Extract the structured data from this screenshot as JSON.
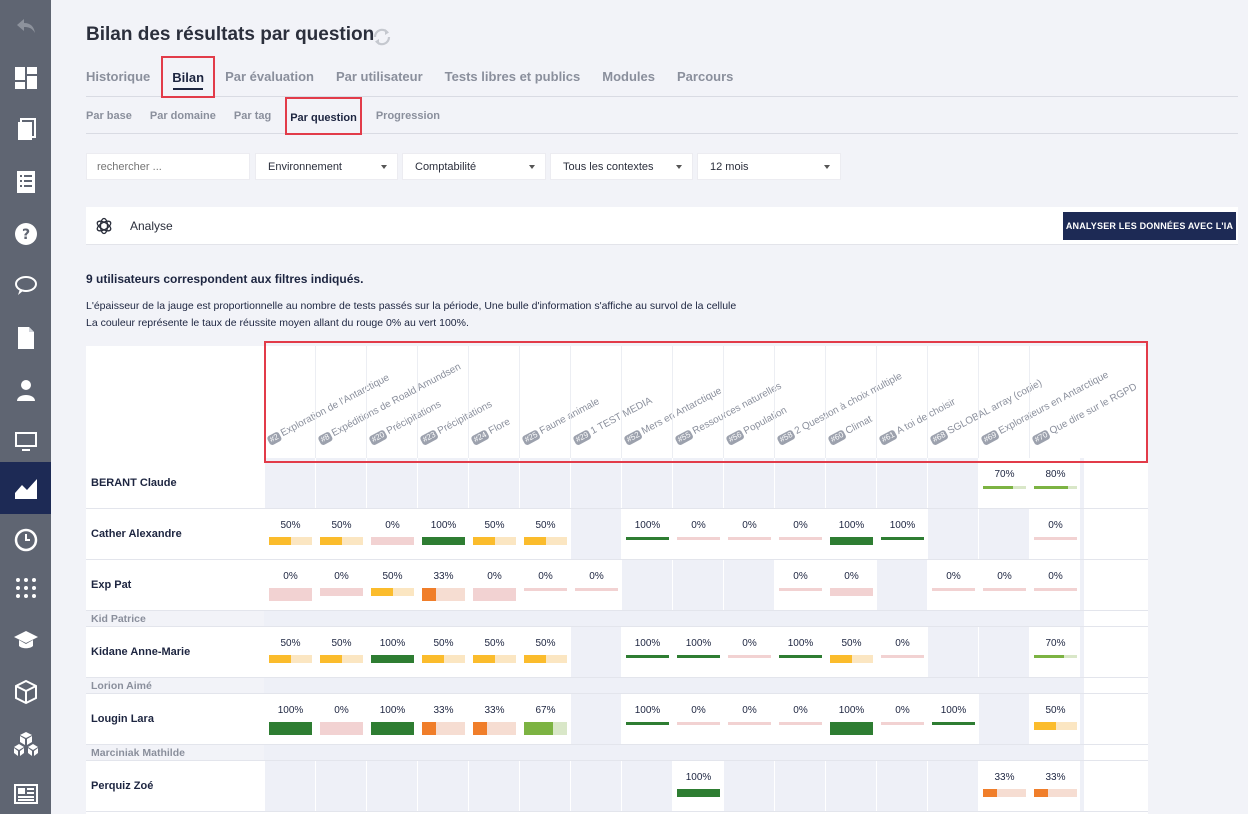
{
  "title": "Bilan des résultats par question",
  "tabs": [
    "Historique",
    "Bilan",
    "Par évaluation",
    "Par utilisateur",
    "Tests libres et publics",
    "Modules",
    "Parcours"
  ],
  "active_tab": 1,
  "subtabs": [
    "Par base",
    "Par domaine",
    "Par tag",
    "Par question",
    "Progression"
  ],
  "active_subtab": 3,
  "search": {
    "placeholder": "rechercher ..."
  },
  "filters": [
    "Environnement",
    "Comptabilité",
    "Tous les contextes",
    "12 mois"
  ],
  "analyse": {
    "label": "Analyse",
    "button": "ANALYSER LES DONNÉES AVEC L'IA"
  },
  "users_count": "9 utilisateurs correspondent aux filtres indiqués.",
  "description": [
    "L'épaisseur de la jauge est proportionnelle au nombre de tests passés sur la période, Une bulle d'information s'affiche au survol de la cellule",
    "La couleur représente le taux de réussite moyen allant du rouge 0% au vert 100%."
  ],
  "questions": [
    {
      "num": "#2",
      "label": "Exploration de l'Antarctique"
    },
    {
      "num": "#8",
      "label": "Expéditions de Roald Amundsen"
    },
    {
      "num": "#20",
      "label": "Précipitations"
    },
    {
      "num": "#23",
      "label": "Précipitations"
    },
    {
      "num": "#24",
      "label": "Flore"
    },
    {
      "num": "#25",
      "label": "Faune animale"
    },
    {
      "num": "#29",
      "label": "1 TEST MEDIA"
    },
    {
      "num": "#52",
      "label": "Mers en Antarctique"
    },
    {
      "num": "#55",
      "label": "Ressources naturelles"
    },
    {
      "num": "#56",
      "label": "Population"
    },
    {
      "num": "#58",
      "label": "2 Question à choix multiple"
    },
    {
      "num": "#60",
      "label": "Climat"
    },
    {
      "num": "#61",
      "label": "A toi de choisir"
    },
    {
      "num": "#68",
      "label": "SGLOBAL array (copie)"
    },
    {
      "num": "#69",
      "label": "Explorateurs en Antarctique"
    },
    {
      "num": "#70",
      "label": "Que dire sur le RGPD"
    }
  ],
  "users": [
    {
      "name": "BERANT Claude",
      "empty": false,
      "cells": [
        null,
        null,
        null,
        null,
        null,
        null,
        null,
        null,
        null,
        null,
        null,
        null,
        null,
        null,
        [
          70,
          "thin"
        ],
        [
          80,
          "thin"
        ]
      ]
    },
    {
      "name": "Cather Alexandre",
      "empty": false,
      "cells": [
        [
          50,
          "mid"
        ],
        [
          50,
          "mid"
        ],
        [
          0,
          "mid"
        ],
        [
          100,
          "mid"
        ],
        [
          50,
          "mid"
        ],
        [
          50,
          "mid"
        ],
        null,
        [
          100,
          "thin"
        ],
        [
          0,
          "thin"
        ],
        [
          0,
          "thin"
        ],
        [
          0,
          "thin"
        ],
        [
          100,
          "mid"
        ],
        [
          100,
          "thin"
        ],
        null,
        null,
        [
          0,
          "thin"
        ]
      ]
    },
    {
      "name": "Exp Pat",
      "empty": false,
      "cells": [
        [
          0,
          "thick"
        ],
        [
          0,
          "mid"
        ],
        [
          50,
          "mid"
        ],
        [
          33,
          "thick"
        ],
        [
          0,
          "thick"
        ],
        [
          0,
          "thin"
        ],
        [
          0,
          "thin"
        ],
        null,
        null,
        null,
        [
          0,
          "thin"
        ],
        [
          0,
          "mid"
        ],
        null,
        [
          0,
          "thin"
        ],
        [
          0,
          "thin"
        ],
        [
          0,
          "thin"
        ]
      ]
    },
    {
      "name": "Kid Patrice",
      "empty": true,
      "cells": []
    },
    {
      "name": "Kidane Anne-Marie",
      "empty": false,
      "cells": [
        [
          50,
          "mid"
        ],
        [
          50,
          "mid"
        ],
        [
          100,
          "mid"
        ],
        [
          50,
          "mid"
        ],
        [
          50,
          "mid"
        ],
        [
          50,
          "mid"
        ],
        null,
        [
          100,
          "thin"
        ],
        [
          100,
          "thin"
        ],
        [
          0,
          "thin"
        ],
        [
          100,
          "thin"
        ],
        [
          50,
          "mid"
        ],
        [
          0,
          "thin"
        ],
        null,
        null,
        [
          70,
          "thin"
        ]
      ]
    },
    {
      "name": "Lorion Aimé",
      "empty": true,
      "cells": []
    },
    {
      "name": "Lougin Lara",
      "empty": false,
      "cells": [
        [
          100,
          "thick"
        ],
        [
          0,
          "thick"
        ],
        [
          100,
          "thick"
        ],
        [
          33,
          "thick"
        ],
        [
          33,
          "thick"
        ],
        [
          67,
          "thick"
        ],
        null,
        [
          100,
          "thin"
        ],
        [
          0,
          "thin"
        ],
        [
          0,
          "thin"
        ],
        [
          0,
          "thin"
        ],
        [
          100,
          "thick"
        ],
        [
          0,
          "thin"
        ],
        [
          100,
          "thin"
        ],
        null,
        [
          50,
          "mid"
        ]
      ]
    },
    {
      "name": "Marciniak Mathilde",
      "empty": true,
      "cells": []
    },
    {
      "name": "Perquiz Zoé",
      "empty": false,
      "cells": [
        null,
        null,
        null,
        null,
        null,
        null,
        null,
        null,
        [
          100,
          "mid"
        ],
        null,
        null,
        null,
        null,
        null,
        [
          33,
          "mid"
        ],
        [
          33,
          "mid"
        ]
      ]
    }
  ],
  "colors": {
    "green": "#2e7d32",
    "lightgreen": "#7cb342",
    "yellow": "#fbbc2c",
    "orange": "#f07e2a",
    "red": "#f2c6c6",
    "navy": "#1d2a55",
    "accent": "#e23b49"
  }
}
